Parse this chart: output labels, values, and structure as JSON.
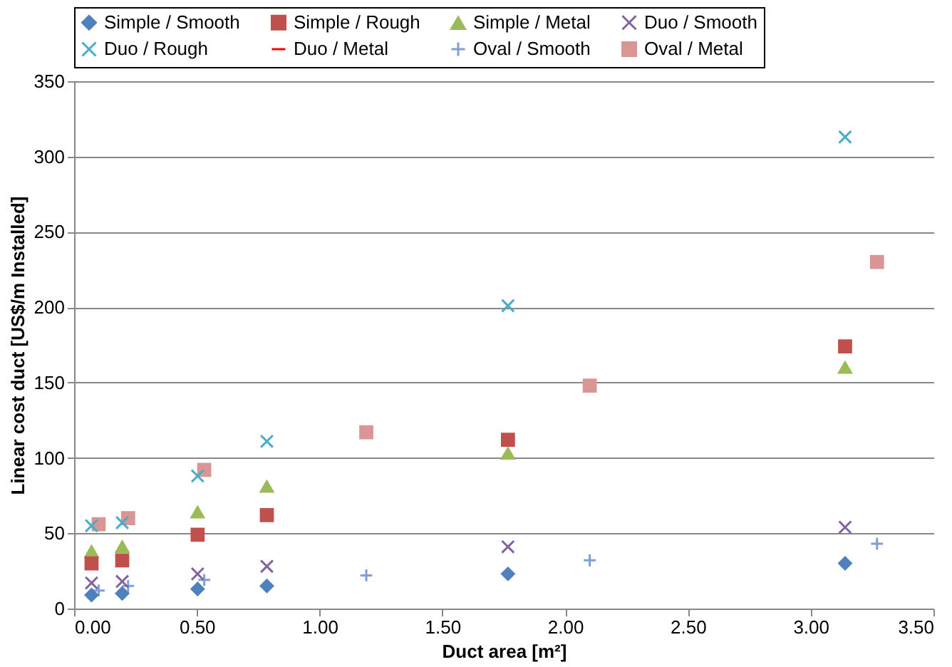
{
  "chart_data": {
    "type": "scatter",
    "xlabel": "Duct area [m²]",
    "ylabel": "Linear cost duct [US$/m Installed]",
    "xlim": [
      0,
      3.5
    ],
    "xticks": [
      {
        "value": 0,
        "label": "0.00"
      },
      {
        "value": 0.5,
        "label": "0.50"
      },
      {
        "value": 1,
        "label": "1.00"
      },
      {
        "value": 1.5,
        "label": "1.50"
      },
      {
        "value": 2,
        "label": "2.00"
      },
      {
        "value": 2.5,
        "label": "2.50"
      },
      {
        "value": 3,
        "label": "3.00"
      },
      {
        "value": 3.5,
        "label": "3.50"
      }
    ],
    "ylim": [
      0,
      350
    ],
    "yticks": [
      0,
      50,
      100,
      150,
      200,
      250,
      300,
      350
    ],
    "grid": "y",
    "legend": "top",
    "x": [
      0.071,
      0.196,
      0.503,
      0.785,
      1.767,
      3.14
    ],
    "series": [
      {
        "name": "Simple / Smooth",
        "color": "#4f81bd",
        "marker": "diamond",
        "values": [
          9,
          10,
          13,
          15,
          23,
          30
        ]
      },
      {
        "name": "Simple / Rough",
        "color": "#c0504d",
        "marker": "square",
        "values": [
          30,
          32,
          49,
          62,
          112,
          174
        ]
      },
      {
        "name": "Simple / Metal",
        "color": "#9bbb59",
        "marker": "triangle",
        "values": [
          38,
          41,
          64,
          81,
          103,
          160
        ]
      },
      {
        "name": "Duo / Smooth",
        "color": "#8064a2",
        "marker": "cross",
        "values": [
          17,
          18,
          23,
          28,
          41,
          54
        ]
      },
      {
        "name": "Duo / Rough",
        "color": "#4bacc6",
        "marker": "cross",
        "values": [
          55,
          57,
          88,
          111,
          201,
          313
        ]
      },
      {
        "name": "Duo / Metal",
        "color": "#ff0000",
        "marker": "none",
        "values": [
          null,
          null,
          null,
          null,
          null,
          null
        ]
      },
      {
        "name": "Oval / Smooth",
        "color": "#7f9fd6",
        "marker": "plus",
        "x": [
          0.1,
          0.22,
          0.53,
          1.19,
          2.1,
          3.27
        ],
        "values": [
          12,
          15,
          19,
          22,
          32,
          43
        ]
      },
      {
        "name": "Oval / Metal",
        "color": "#d99694",
        "marker": "square",
        "x": [
          0.1,
          0.22,
          0.53,
          1.19,
          2.1,
          3.27
        ],
        "values": [
          56,
          60,
          92,
          117,
          148,
          230
        ]
      }
    ]
  }
}
